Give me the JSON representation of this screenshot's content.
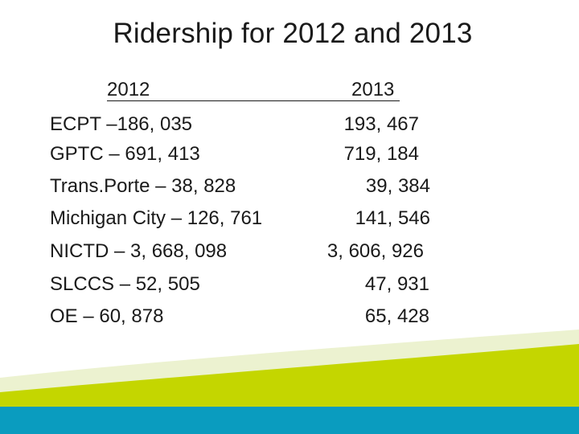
{
  "slide": {
    "title": "Ridership for 2012 and 2013",
    "headers": {
      "year_2012": "2012",
      "year_2013": "2013"
    },
    "rows": [
      {
        "label_2012": "ECPT –186, 035",
        "value_2013": "193, 467"
      },
      {
        "label_2012": "GPTC – 691, 413",
        "value_2013": "719, 184"
      },
      {
        "label_2012": "Trans.Porte – 38, 828",
        "value_2013": "39, 384"
      },
      {
        "label_2012": "Michigan City – 126, 761",
        "value_2013": "141, 546"
      },
      {
        "label_2012": "NICTD – 3, 668, 098",
        "value_2013": "3, 606, 926"
      },
      {
        "label_2012": "SLCCS – 52, 505",
        "value_2013": "47, 931"
      },
      {
        "label_2012": "OE – 60, 878",
        "value_2013": "65, 428"
      }
    ],
    "colors": {
      "green_band": "#c4d600",
      "teal_band": "#0a9cbf",
      "light_swoosh": "#e9f0c8"
    }
  }
}
